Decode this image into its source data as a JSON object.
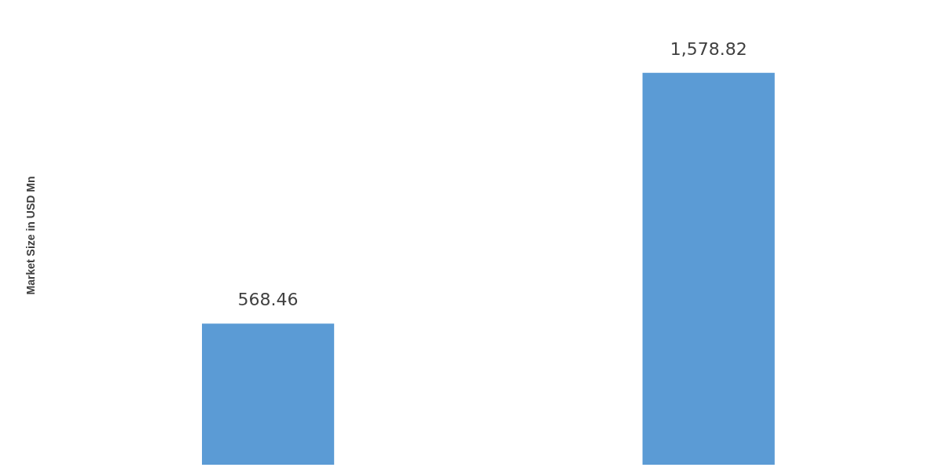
{
  "chart_data": {
    "type": "bar",
    "ylabel": "Market Size in USD Mn",
    "categories": [
      null,
      null
    ],
    "values": [
      568.46,
      1578.82
    ],
    "value_labels": [
      "568.46",
      "1,578.82"
    ],
    "color": "#5b9bd5",
    "grid": false,
    "legend": false
  }
}
